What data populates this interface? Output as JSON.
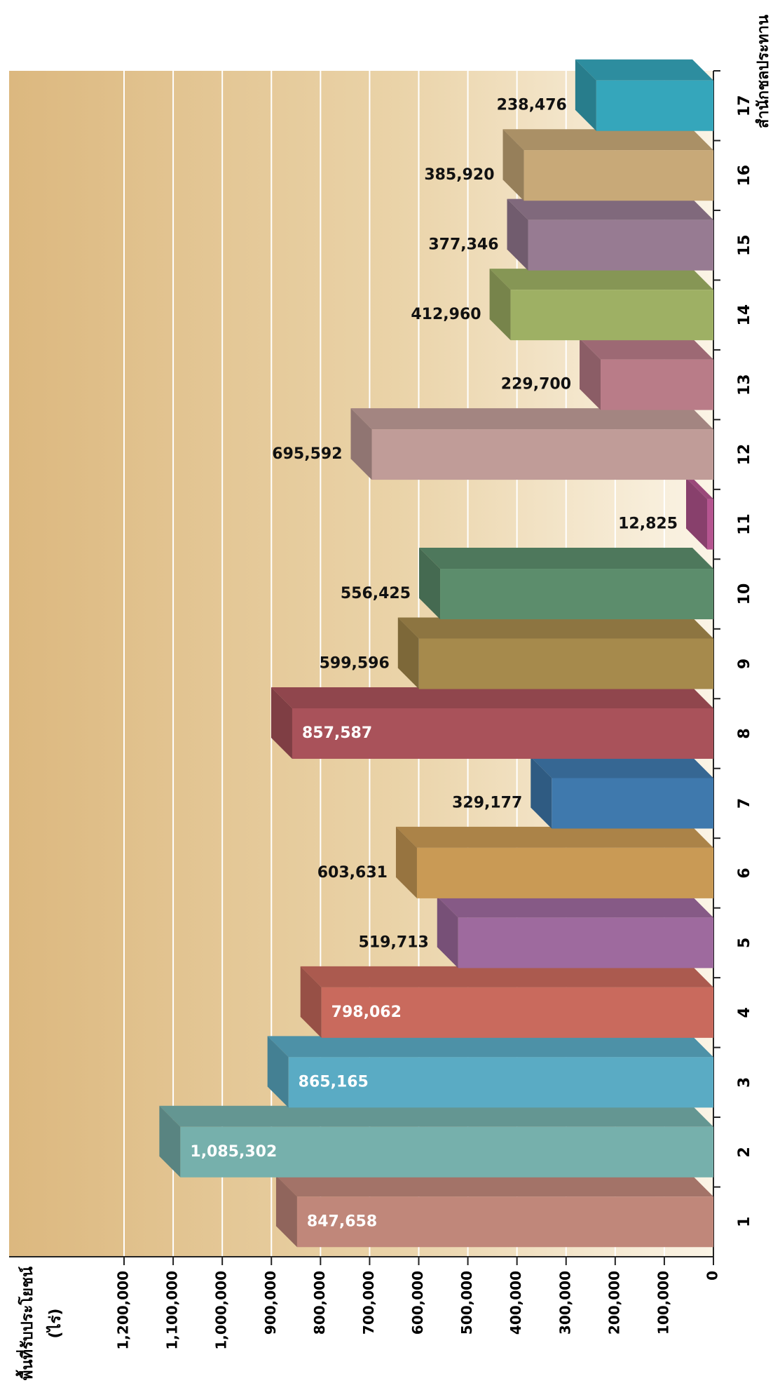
{
  "chart_data": {
    "type": "bar3d",
    "ylabel": "พื้นที่รับประโยชน์",
    "ylabel_unit": "(ไร่)",
    "xlabel": "สำนักชลประทาน",
    "categories": [
      "1",
      "2",
      "3",
      "4",
      "5",
      "6",
      "7",
      "8",
      "9",
      "10",
      "11",
      "12",
      "13",
      "14",
      "15",
      "16",
      "17"
    ],
    "values": [
      847658,
      1085302,
      865165,
      798062,
      519713,
      603631,
      329177,
      857587,
      599596,
      556425,
      12825,
      695592,
      229700,
      412960,
      377346,
      385920,
      238476
    ],
    "value_labels": [
      "847,658",
      "1,085,302",
      "865,165",
      "798,062",
      "519,713",
      "603,631",
      "329,177",
      "857,587",
      "599,596",
      "556,425",
      "12,825",
      "695,592",
      "229,700",
      "412,960",
      "377,346",
      "385,920",
      "238,476"
    ],
    "colors": [
      "#c0877a",
      "#76b0ac",
      "#5aabc4",
      "#c96a5d",
      "#9e6a9e",
      "#c99a55",
      "#3f79ad",
      "#a9525a",
      "#a68a4c",
      "#5c8d6c",
      "#b55590",
      "#c09c98",
      "#b97c88",
      "#9eb064",
      "#977b92",
      "#c8a978",
      "#35a6bb"
    ],
    "ylim": [
      0,
      1200000
    ],
    "yticks": [
      0,
      {
        "value": 100000,
        "label": "100,000"
      },
      {
        "value": 200000,
        "label": "200,000"
      },
      {
        "value": 300000,
        "label": "300,000"
      },
      {
        "value": 400000,
        "label": "400,000"
      },
      {
        "value": 500000,
        "label": "500,000"
      },
      {
        "value": 600000,
        "label": "600,000"
      },
      {
        "value": 700000,
        "label": "700,000"
      },
      {
        "value": 800000,
        "label": "800,000"
      },
      {
        "value": 900000,
        "label": "900,000"
      },
      {
        "value": 1000000,
        "label": "1,000,000"
      },
      {
        "value": 1100000,
        "label": "1,100,000"
      },
      {
        "value": 1200000,
        "label": "1,200,000"
      }
    ],
    "grid": true
  }
}
